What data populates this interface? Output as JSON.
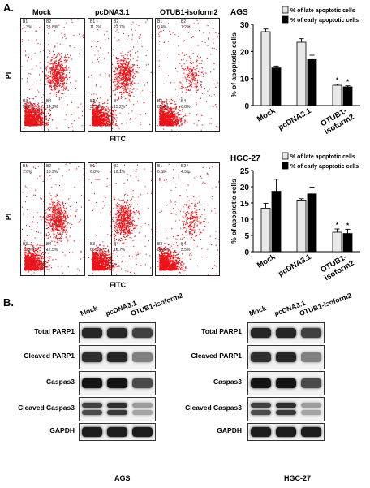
{
  "panel_a": {
    "letter": "A.",
    "flow_column_labels": [
      "Mock",
      "pcDNA3.1",
      "OTUB1-isoform2"
    ],
    "y_axis_label": "PI",
    "x_axis_label": "FITC",
    "ags_flow": [
      {
        "b1": "B1",
        "b1_val": "1.3%",
        "b2": "B2",
        "b2_val": "28.8%",
        "b3": "B3",
        "b3_val": "50.6%",
        "b4": "B4",
        "b4_val": "14.1%"
      },
      {
        "b1": "B1",
        "b1_val": "11.2%",
        "b2": "B2",
        "b2_val": "22.7%",
        "b3": "B3",
        "b3_val": "52.0%",
        "b4": "B4",
        "b4_val": "15.2%"
      },
      {
        "b1": "B1",
        "b1_val": "0.4%",
        "b2": "B2",
        "b2_val": "7.2%",
        "b3": "B3",
        "b3_val": "85.4%",
        "b4": "B4",
        "b4_val": "6.8%"
      }
    ],
    "hgc_flow": [
      {
        "b1": "B1",
        "b1_val": "1.6%",
        "b2": "B2",
        "b2_val": "15.9%",
        "b3": "B3",
        "b3_val": "70.3%",
        "b4": "B4",
        "b4_val": "12.5%"
      },
      {
        "b1": "B1",
        "b1_val": "0.8%",
        "b2": "B2",
        "b2_val": "16.1%",
        "b3": "B3",
        "b3_val": "66.2%",
        "b4": "B4",
        "b4_val": "16.7%"
      },
      {
        "b1": "B1",
        "b1_val": "0.5%",
        "b2": "B2",
        "b2_val": "4.5%",
        "b3": "B3",
        "b3_val": "89.6%",
        "b4": "B4",
        "b4_val": "5.5%"
      }
    ]
  },
  "chart_data": [
    {
      "type": "bar",
      "title": "AGS",
      "ylabel": "% of apoptotic cells",
      "ylim": [
        0,
        30
      ],
      "yticks": [
        0,
        10,
        20,
        30
      ],
      "categories": [
        "Mock",
        "pcDNA3.1",
        "OTUB1-isoform2"
      ],
      "series": [
        {
          "name": "% of late apoptotic cells",
          "color": "#e8e8e8",
          "values": [
            27.3,
            23.4,
            7.5
          ],
          "errors": [
            1.0,
            1.3,
            0.4
          ]
        },
        {
          "name": "% of early apoptotic cells",
          "color": "#000000",
          "values": [
            13.9,
            17.0,
            6.9
          ],
          "errors": [
            0.7,
            1.6,
            0.4
          ]
        }
      ],
      "annotations": [
        "*",
        "*"
      ],
      "legend": "top-right"
    },
    {
      "type": "bar",
      "title": "HGC-27",
      "ylabel": "% of apoptotic cells",
      "ylim": [
        0,
        25
      ],
      "yticks": [
        0,
        5,
        10,
        15,
        20,
        25
      ],
      "categories": [
        "Mock",
        "pcDNA3.1",
        "OTUB1-isoform2"
      ],
      "series": [
        {
          "name": "% of late apoptotic cells",
          "color": "#e8e8e8",
          "values": [
            13.4,
            15.9,
            6.0
          ],
          "errors": [
            1.5,
            0.4,
            1.0
          ]
        },
        {
          "name": "% of early apoptotic cells",
          "color": "#000000",
          "values": [
            18.6,
            17.8,
            5.6
          ],
          "errors": [
            3.7,
            2.1,
            1.3
          ]
        }
      ],
      "annotations": [
        "*",
        "*"
      ],
      "legend": "top-right",
      "order": [
        "early",
        "late"
      ]
    }
  ],
  "panel_b": {
    "letter": "B.",
    "lanes": [
      "Mock",
      "pcDNA3.1",
      "OTUB1-isoform2"
    ],
    "rows": [
      "Total PARP1",
      "Cleaved PARP1",
      "Caspas3",
      "Cleaved Caspas3",
      "GAPDH"
    ],
    "left_cell_line": "AGS",
    "right_cell_line": "HGC-27"
  }
}
